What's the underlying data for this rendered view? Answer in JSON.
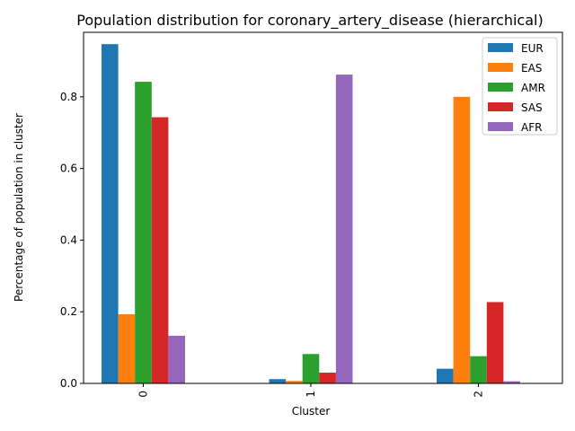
{
  "chart_data": {
    "type": "bar",
    "title": "Population distribution for coronary_artery_disease (hierarchical)",
    "xlabel": "Cluster",
    "ylabel": "Percentage of population in cluster",
    "categories": [
      "0",
      "1",
      "2"
    ],
    "ylim": [
      0,
      0.98
    ],
    "yticks": [
      0.0,
      0.2,
      0.4,
      0.6,
      0.8
    ],
    "ytick_labels": [
      "0.0",
      "0.2",
      "0.4",
      "0.6",
      "0.8"
    ],
    "grid": false,
    "legend_position": "top-right",
    "series": [
      {
        "name": "EUR",
        "color": "#1f77b4",
        "values": [
          0.947,
          0.012,
          0.041
        ]
      },
      {
        "name": "EAS",
        "color": "#ff7f0e",
        "values": [
          0.193,
          0.007,
          0.8
        ]
      },
      {
        "name": "AMR",
        "color": "#2ca02c",
        "values": [
          0.842,
          0.082,
          0.076
        ]
      },
      {
        "name": "SAS",
        "color": "#d62728",
        "values": [
          0.743,
          0.03,
          0.227
        ]
      },
      {
        "name": "AFR",
        "color": "#9467bd",
        "values": [
          0.133,
          0.862,
          0.006
        ]
      }
    ]
  }
}
